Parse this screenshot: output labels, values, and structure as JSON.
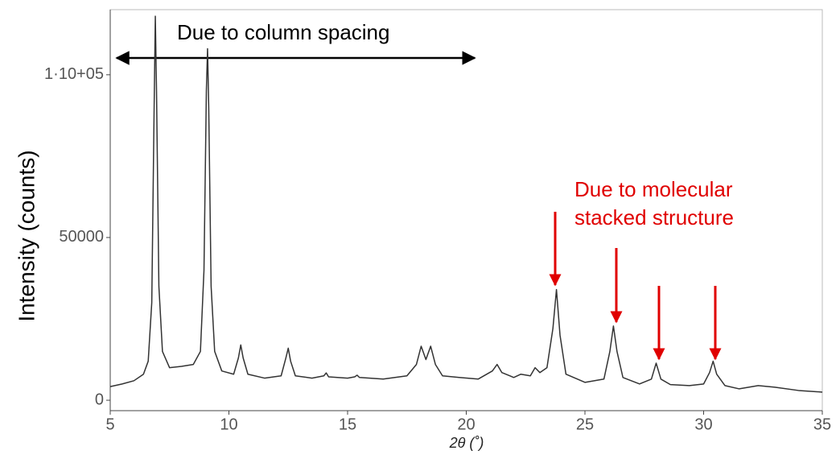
{
  "chart_data": {
    "type": "line",
    "ylabel": "Intensity (counts)",
    "xlabel": "2θ (˚)",
    "annotations": [
      "Due to column spacing",
      "Due to molecular",
      "stacked structure"
    ],
    "color": "#333333",
    "xlim": [
      5,
      35
    ],
    "xticks": [
      5,
      10,
      15,
      20,
      25,
      30,
      35
    ],
    "ylim": [
      -3200,
      120000
    ],
    "yticks": [
      0,
      50000,
      {
        "value": 100000,
        "label": "1·10+05"
      }
    ],
    "x": [
      5,
      5.5,
      6,
      6.4,
      6.6,
      6.75,
      6.85,
      6.9,
      6.95,
      7.05,
      7.2,
      7.5,
      8,
      8.5,
      8.8,
      8.95,
      9.05,
      9.1,
      9.15,
      9.25,
      9.4,
      9.7,
      10.2,
      10.4,
      10.5,
      10.6,
      10.8,
      11.5,
      12.2,
      12.4,
      12.5,
      12.6,
      12.8,
      13.5,
      14,
      14.1,
      14.2,
      15,
      15.3,
      15.4,
      15.5,
      16.5,
      17.5,
      17.9,
      18.1,
      18.3,
      18.5,
      18.7,
      19,
      19.7,
      20.5,
      21.1,
      21.3,
      21.5,
      22,
      22.3,
      22.7,
      22.9,
      23.1,
      23.4,
      23.65,
      23.8,
      23.95,
      24.2,
      25,
      25.8,
      26.05,
      26.2,
      26.35,
      26.6,
      27.3,
      27.8,
      28,
      28.2,
      28.6,
      29.4,
      30,
      30.25,
      30.4,
      30.55,
      30.9,
      31.5,
      32.3,
      33,
      34,
      35
    ],
    "values": [
      4200,
      5000,
      6000,
      8000,
      12000,
      30000,
      90000,
      118000,
      95000,
      35000,
      15000,
      10000,
      10400,
      11000,
      15000,
      40000,
      95000,
      108000,
      90000,
      35000,
      15000,
      9000,
      8000,
      13000,
      17000,
      13000,
      8000,
      6800,
      7500,
      13000,
      16000,
      12000,
      7500,
      6800,
      7500,
      8400,
      7200,
      6800,
      7200,
      7700,
      7000,
      6500,
      7500,
      11000,
      16600,
      12500,
      16600,
      11000,
      7500,
      7000,
      6500,
      9000,
      11000,
      8500,
      7000,
      8000,
      7500,
      10000,
      8500,
      10000,
      22000,
      34000,
      20000,
      8000,
      5500,
      6500,
      15000,
      22800,
      15000,
      7000,
      5000,
      6500,
      11400,
      6500,
      4800,
      4500,
      5000,
      8500,
      12000,
      8000,
      4500,
      3500,
      4500,
      4000,
      3000,
      2500
    ]
  }
}
